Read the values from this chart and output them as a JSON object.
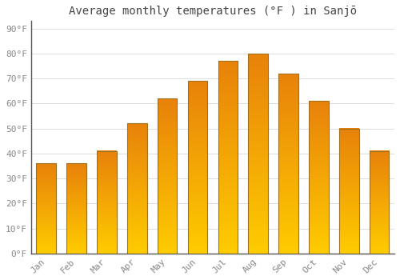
{
  "title": "Average monthly temperatures (°F ) in Sanjō",
  "months": [
    "Jan",
    "Feb",
    "Mar",
    "Apr",
    "May",
    "Jun",
    "Jul",
    "Aug",
    "Sep",
    "Oct",
    "Nov",
    "Dec"
  ],
  "values": [
    36,
    36,
    41,
    52,
    62,
    69,
    77,
    80,
    72,
    61,
    50,
    41
  ],
  "bar_color_top": "#E8820A",
  "bar_color_bottom": "#FFCC00",
  "bar_edge_color": "#A07020",
  "background_color": "#FFFFFF",
  "grid_color": "#DDDDDD",
  "ylabel_ticks": [
    0,
    10,
    20,
    30,
    40,
    50,
    60,
    70,
    80,
    90
  ],
  "ylim": [
    0,
    93
  ],
  "title_fontsize": 10,
  "tick_fontsize": 8,
  "tick_color": "#888888",
  "font_family": "monospace"
}
